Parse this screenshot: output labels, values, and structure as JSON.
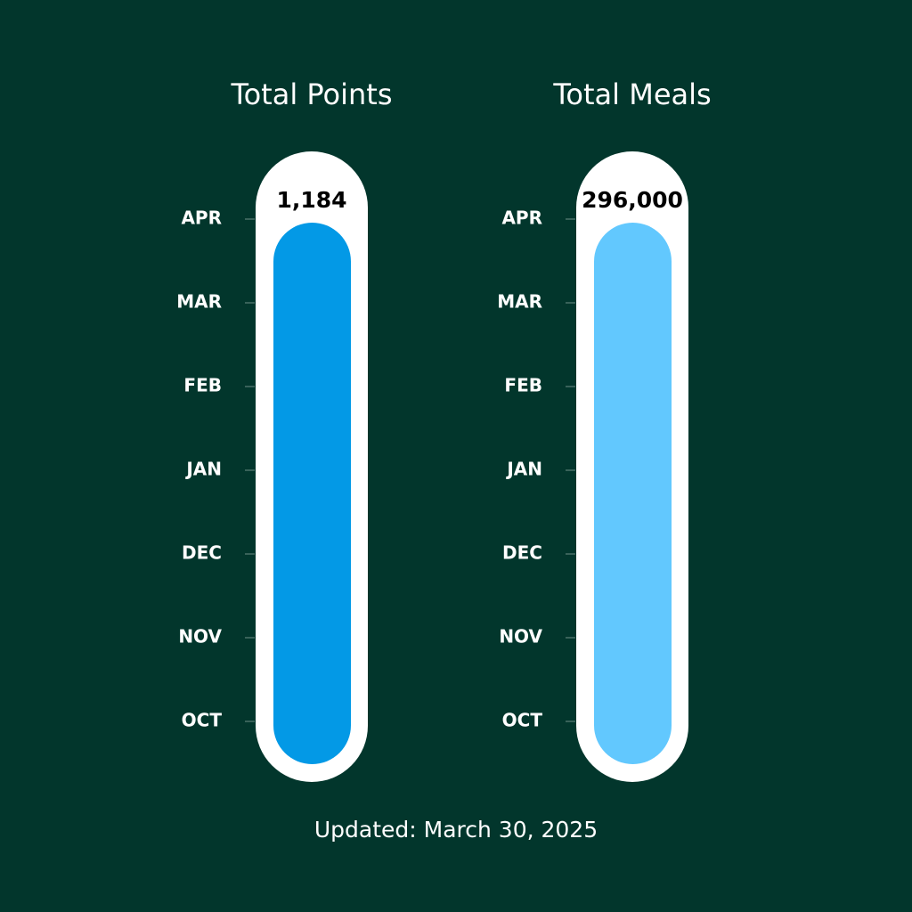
{
  "chart_data": [
    {
      "type": "thermometer",
      "title": "Total Points",
      "value": 1184,
      "value_label": "1,184",
      "color": "#0399e6",
      "categories": [
        "OCT",
        "NOV",
        "DEC",
        "JAN",
        "FEB",
        "MAR",
        "APR"
      ]
    },
    {
      "type": "thermometer",
      "title": "Total Meals",
      "value": 296000,
      "value_label": "296,000",
      "color": "#62c8fe",
      "categories": [
        "OCT",
        "NOV",
        "DEC",
        "JAN",
        "FEB",
        "MAR",
        "APR"
      ]
    }
  ],
  "footer": "Updated: March 30, 2025"
}
